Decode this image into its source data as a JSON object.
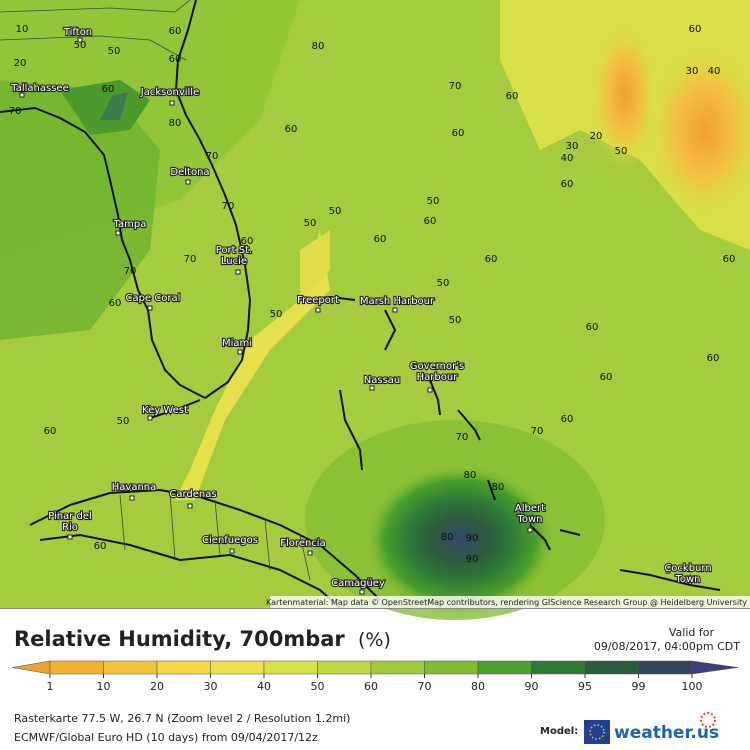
{
  "map": {
    "cities": [
      {
        "lines": [
          "Tifton"
        ]
      },
      {
        "lines": [
          "Tallahassee"
        ]
      },
      {
        "lines": [
          "Jacksonville"
        ]
      },
      {
        "lines": [
          "Deltona"
        ]
      },
      {
        "lines": [
          "Tampa"
        ]
      },
      {
        "lines": [
          "Port St.",
          "Lucie"
        ]
      },
      {
        "lines": [
          "Cape Coral"
        ]
      },
      {
        "lines": [
          "Miami"
        ]
      },
      {
        "lines": [
          "Key West"
        ]
      },
      {
        "lines": [
          "Freeport"
        ]
      },
      {
        "lines": [
          "Marsh Harbour"
        ]
      },
      {
        "lines": [
          "Nassau"
        ]
      },
      {
        "lines": [
          "Governor's",
          "Harbour"
        ]
      },
      {
        "lines": [
          "Havanna"
        ]
      },
      {
        "lines": [
          "Cardenas"
        ]
      },
      {
        "lines": [
          "Pinar del",
          "Rio"
        ]
      },
      {
        "lines": [
          "Cienfuegos"
        ]
      },
      {
        "lines": [
          "Florencia"
        ]
      },
      {
        "lines": [
          "Camagüey"
        ]
      },
      {
        "lines": [
          "Albert",
          "Town"
        ]
      },
      {
        "lines": [
          "Cockburn",
          "Town"
        ]
      }
    ],
    "contour_labels": [
      10,
      50,
      20,
      50,
      60,
      60,
      80,
      70,
      60,
      80,
      70,
      60,
      70,
      60,
      60,
      60,
      30,
      40,
      30,
      20,
      40,
      50,
      60,
      50,
      60,
      50,
      60,
      50,
      60,
      60,
      50,
      50,
      60,
      60,
      60,
      50,
      60,
      70,
      70,
      60,
      70,
      50,
      60,
      60,
      70,
      70,
      80,
      80,
      80,
      90,
      90,
      60,
      70
    ],
    "attribution": "Kartenmaterial: Map data © OpenStreetMap contributors, rendering GIScience Research Group @ Heidelberg University"
  },
  "footer": {
    "title": "Relative Humidity, 700mbar",
    "unit": "(%)",
    "valid_label": "Valid for",
    "valid_time": "09/08/2017, 04:00pm CDT",
    "legend": {
      "ticks": [
        1,
        10,
        20,
        30,
        40,
        50,
        60,
        70,
        80,
        90,
        95,
        99,
        100
      ],
      "under_color": "#eea030",
      "colors": [
        "#f2b032",
        "#f6c23c",
        "#f6d646",
        "#eee04c",
        "#d8e04a",
        "#bcd842",
        "#9ecb3a",
        "#80bb32",
        "#4aa02a",
        "#2f7a36",
        "#2a5b3a",
        "#33445f"
      ],
      "over_color": "#3c3e78"
    },
    "info_line_1": "Rasterkarte 77.5 W, 26.7 N (Zoom level 2 / Resolution 1.2mi)",
    "info_line_2": "ECMWF/Global Euro HD (10 days) from 09/04/2017/12z",
    "model_label": "Model:",
    "brand": "weather.us"
  }
}
